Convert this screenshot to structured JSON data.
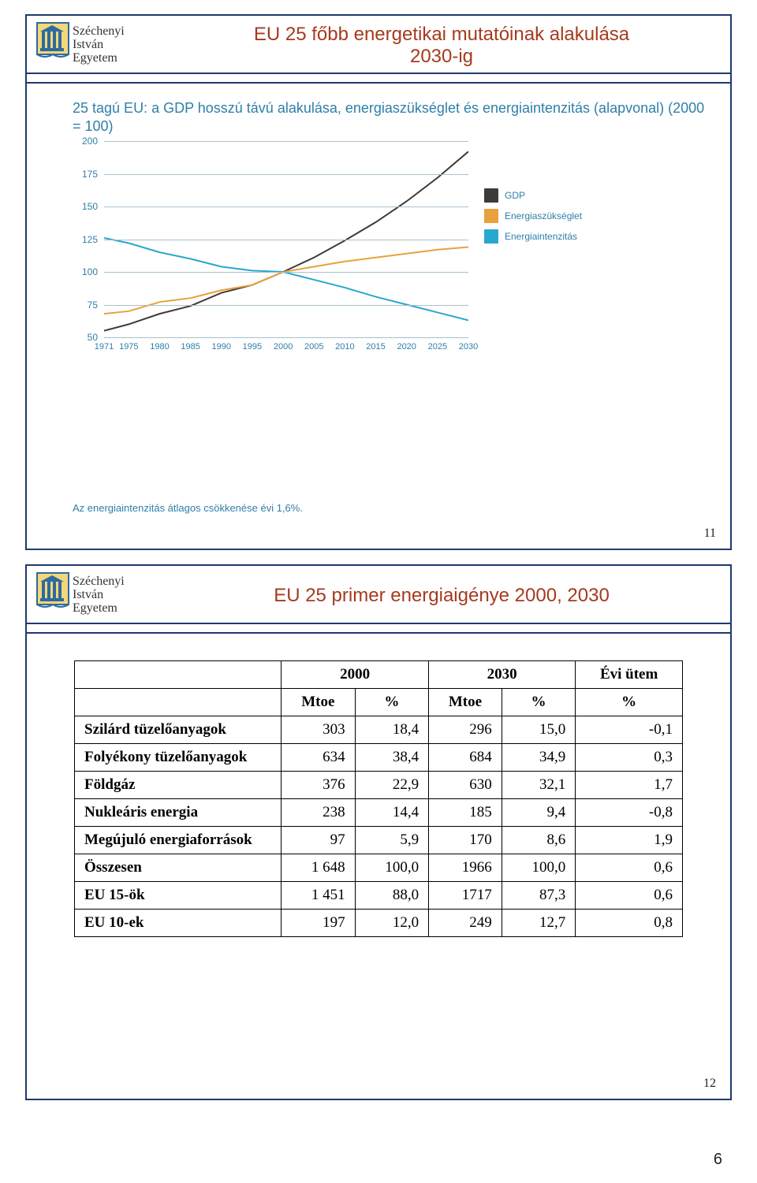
{
  "uni": {
    "line1": "Széchenyi",
    "line2": "István",
    "line3": "Egyetem"
  },
  "slide11": {
    "title_line1": "EU 25 főbb energetikai mutatóinak alakulása",
    "title_line2": "2030-ig",
    "number": "11",
    "chart": {
      "type": "line",
      "title": "25 tagú EU: a GDP hosszú távú alakulása, energiaszükséglet és energiaintenzitás (alapvonal) (2000 = 100)",
      "footnote": "Az energiaintenzitás átlagos csökkenése évi 1,6%.",
      "title_fontsize": 18,
      "title_color": "#2f7fa8",
      "background_color": "#ffffff",
      "grid_color": "#a9c0cc",
      "line_width": 2,
      "ylim": [
        50,
        200
      ],
      "yticks": [
        50,
        75,
        100,
        125,
        150,
        175,
        200
      ],
      "xlim": [
        1971,
        2030
      ],
      "xticks": [
        1971,
        1975,
        1980,
        1985,
        1990,
        1995,
        2000,
        2005,
        2010,
        2015,
        2020,
        2025,
        2030
      ],
      "label_fontsize": 12,
      "label_color": "#2f7fa8",
      "legend": {
        "position": "right",
        "fontsize": 12
      },
      "series": [
        {
          "name": "GDP",
          "color": "#3e3a37",
          "points": [
            [
              1971,
              55
            ],
            [
              1975,
              60
            ],
            [
              1980,
              68
            ],
            [
              1985,
              74
            ],
            [
              1990,
              84
            ],
            [
              1995,
              90
            ],
            [
              2000,
              100
            ],
            [
              2005,
              111
            ],
            [
              2010,
              124
            ],
            [
              2015,
              138
            ],
            [
              2020,
              154
            ],
            [
              2025,
              172
            ],
            [
              2030,
              192
            ]
          ]
        },
        {
          "name": "Energiaszükséglet",
          "color": "#e8a13c",
          "points": [
            [
              1971,
              68
            ],
            [
              1975,
              70
            ],
            [
              1980,
              77
            ],
            [
              1985,
              80
            ],
            [
              1990,
              86
            ],
            [
              1995,
              90
            ],
            [
              2000,
              100
            ],
            [
              2005,
              104
            ],
            [
              2010,
              108
            ],
            [
              2015,
              111
            ],
            [
              2020,
              114
            ],
            [
              2025,
              117
            ],
            [
              2030,
              119
            ]
          ]
        },
        {
          "name": "Energiaintenzitás",
          "color": "#2aa7cf",
          "points": [
            [
              1971,
              126
            ],
            [
              1975,
              122
            ],
            [
              1980,
              115
            ],
            [
              1985,
              110
            ],
            [
              1990,
              104
            ],
            [
              1995,
              101
            ],
            [
              2000,
              100
            ],
            [
              2005,
              94
            ],
            [
              2010,
              88
            ],
            [
              2015,
              81
            ],
            [
              2020,
              75
            ],
            [
              2025,
              69
            ],
            [
              2030,
              63
            ]
          ]
        }
      ]
    }
  },
  "slide12": {
    "title": "EU 25 primer energiaigénye 2000, 2030",
    "number": "12",
    "table": {
      "type": "table",
      "border_color": "#000000",
      "font_family": "Times New Roman",
      "fontsize": 19,
      "header_row1": [
        "",
        "2000",
        "2030",
        "Évi ütem"
      ],
      "header_row1_spans": [
        1,
        2,
        2,
        1
      ],
      "header_row2": [
        "",
        "Mtoe",
        "%",
        "Mtoe",
        "%",
        "%"
      ],
      "columns": [
        "label",
        "mtoe_2000",
        "pct_2000",
        "mtoe_2030",
        "pct_2030",
        "rate"
      ],
      "column_align": [
        "left",
        "right",
        "right",
        "right",
        "right",
        "right"
      ],
      "rows": [
        [
          "Szilárd tüzelőanyagok",
          "303",
          "18,4",
          "296",
          "15,0",
          "-0,1"
        ],
        [
          "Folyékony tüzelőanyagok",
          "634",
          "38,4",
          "684",
          "34,9",
          "0,3"
        ],
        [
          "Földgáz",
          "376",
          "22,9",
          "630",
          "32,1",
          "1,7"
        ],
        [
          "Nukleáris energia",
          "238",
          "14,4",
          "185",
          "9,4",
          "-0,8"
        ],
        [
          "Megújuló energiaforrások",
          "97",
          "5,9",
          "170",
          "8,6",
          "1,9"
        ],
        [
          "Összesen",
          "1 648",
          "100,0",
          "1966",
          "100,0",
          "0,6"
        ],
        [
          "EU 15-ök",
          "1 451",
          "88,0",
          "1717",
          "87,3",
          "0,6"
        ],
        [
          "EU 10-ek",
          "197",
          "12,0",
          "249",
          "12,7",
          "0,8"
        ]
      ]
    }
  },
  "page_number": "6"
}
